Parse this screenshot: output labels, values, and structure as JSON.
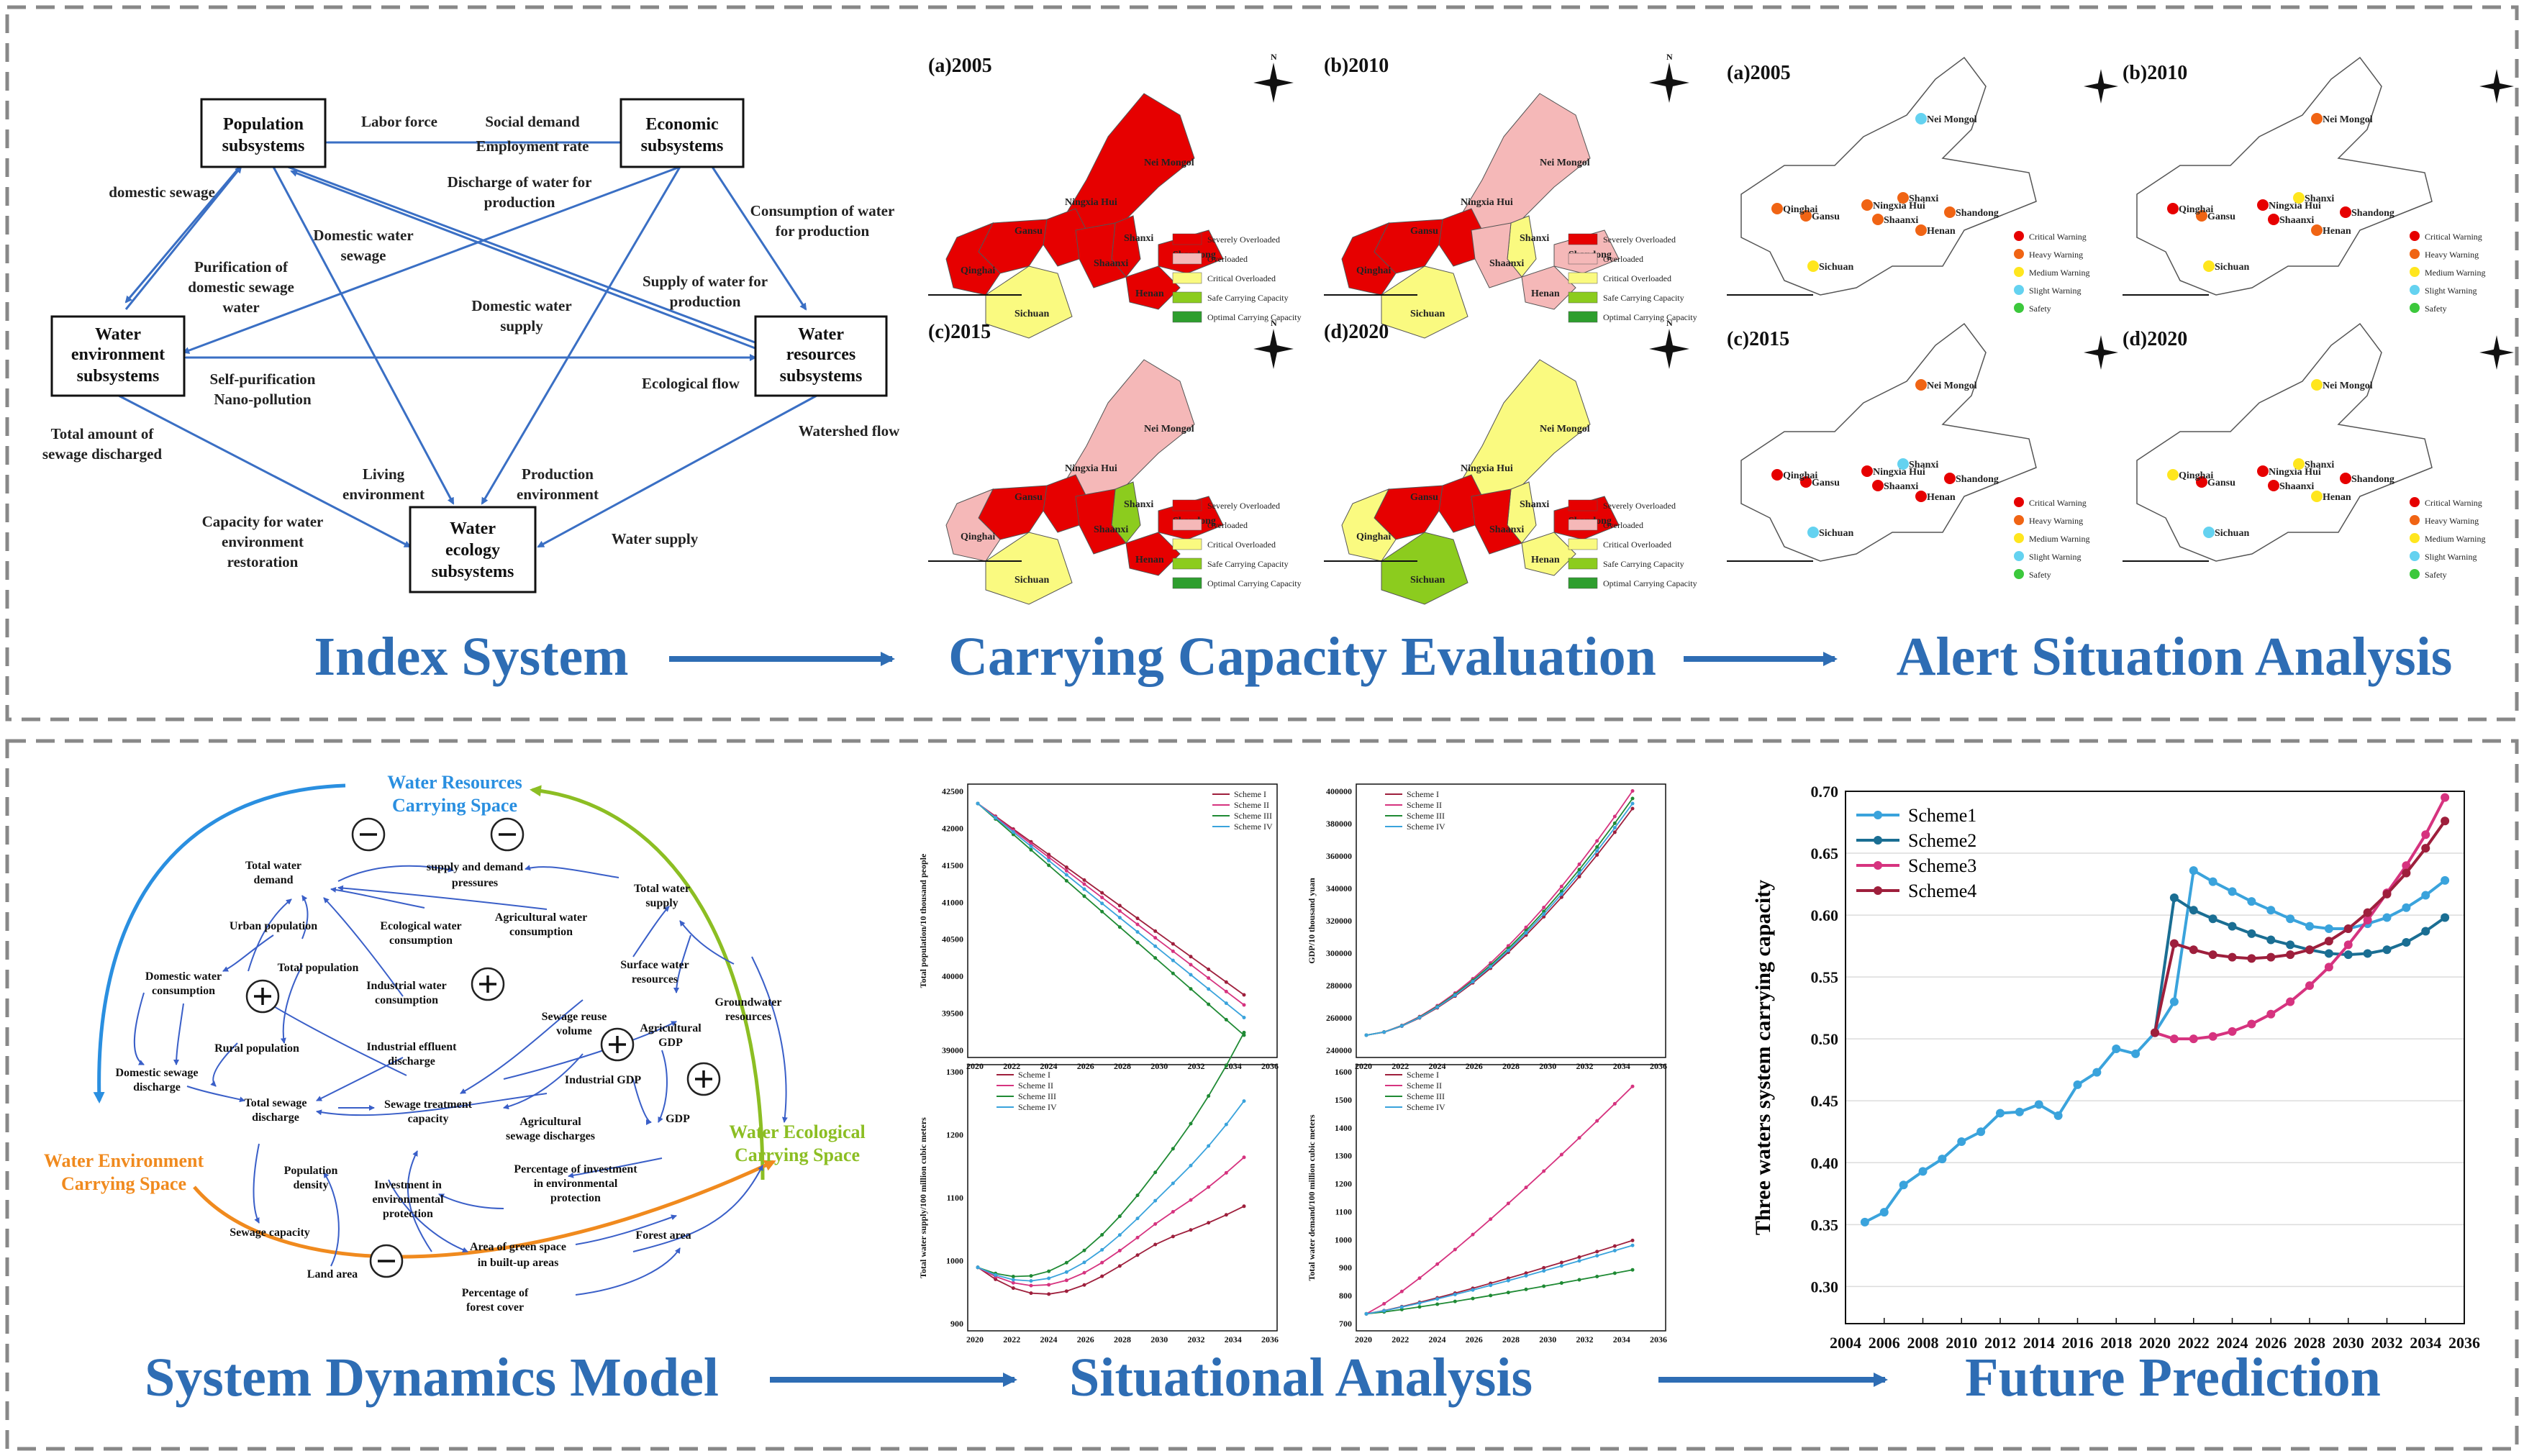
{
  "colors": {
    "accent_blue": "#2e6db4",
    "severely": "#e60000",
    "overloaded": "#f5b8b8",
    "critical": "#fafa80",
    "safe": "#8ccc1e",
    "optimal": "#2e9e2e",
    "critical_warning": "#e60000",
    "heavy_warning": "#f06414",
    "medium_warning": "#ffe61e",
    "slight_warning": "#64d2f0",
    "safety": "#3cc83c"
  },
  "sections": {
    "index_system": "Index System",
    "carrying_capacity": "Carrying Capacity Evaluation",
    "alert_situation": "Alert Situation Analysis",
    "sd_model": "System Dynamics Model",
    "situational": "Situational Analysis",
    "future": "Future Prediction"
  },
  "index_system": {
    "boxes": {
      "population": [
        "Population",
        "subsystems"
      ],
      "economic": [
        "Economic",
        "subsystems"
      ],
      "water_env": [
        "Water",
        "environment",
        "subsystems"
      ],
      "water_res": [
        "Water",
        "resources",
        "subsystems"
      ],
      "water_eco": [
        "Water",
        "ecology",
        "subsystems"
      ]
    },
    "labels": {
      "labor_force": "Labor force",
      "social_demand": "Social demand",
      "employment_rate": "Employment rate",
      "domestic_sewage": "domestic sewage",
      "discharge_water_1": "Discharge of water for",
      "discharge_water_2": "production",
      "consumption_water_1": "Consumption of water",
      "consumption_water_2": "for production",
      "domestic_water_sewage_1": "Domestic water",
      "domestic_water_sewage_2": "sewage",
      "purification_1": "Purification of",
      "purification_2": "domestic sewage",
      "purification_3": "water",
      "domestic_water_supply_1": "Domestic water",
      "domestic_water_supply_2": "supply",
      "supply_water_1": "Supply of water for",
      "supply_water_2": "production",
      "self_purification": "Self-purification",
      "nano_pollution": "Nano-pollution",
      "ecological_flow": "Ecological flow",
      "total_sewage_1": "Total amount of",
      "total_sewage_2": "sewage discharged",
      "watershed_flow": "Watershed flow",
      "living_env_1": "Living",
      "living_env_2": "environment",
      "production_env_1": "Production",
      "production_env_2": "environment",
      "capacity_1": "Capacity for water",
      "capacity_2": "environment",
      "capacity_3": "restoration",
      "water_supply": "Water supply"
    }
  },
  "carrying_maps": {
    "titles": [
      "(a)2005",
      "(b)2010",
      "(c)2015",
      "(d)2020"
    ],
    "legend": [
      "Severely Overloaded",
      "Overloaded",
      "Critical Overloaded",
      "Safe Carrying Capacity",
      "Optimal Carrying Capacity"
    ],
    "place_names": {
      "nei_mongol": "Nei Mongol",
      "ningxia": "Ningxia Hui",
      "gansu": "Gansu",
      "qinghai": "Qinghai",
      "shanxi": "Shanxi",
      "shaanxi": "Shaanxi",
      "henan": "Henan",
      "shandong": "Shandong",
      "sichuan": "Sichuan"
    },
    "north": "N"
  },
  "alert_maps": {
    "titles": [
      "(a)2005",
      "(b)2010",
      "(c)2015",
      "(d)2020"
    ],
    "legend": [
      "Critical Warning",
      "Heavy Warning",
      "Medium Warning",
      "Slight Warning",
      "Safety"
    ]
  },
  "sd_model": {
    "spaces": {
      "resources_1": "Water Resources",
      "resources_2": "Carrying Space",
      "environment_1": "Water Environment",
      "environment_2": "Carrying Space",
      "ecological_1": "Water Ecological",
      "ecological_2": "Carrying Space"
    },
    "nodes": {
      "total_water_demand_1": "Total water",
      "total_water_demand_2": "demand",
      "supply_demand_1": "supply and demand",
      "supply_demand_2": "pressures",
      "total_water_supply_1": "Total water",
      "total_water_supply_2": "supply",
      "urban_population": "Urban population",
      "ecological_consumption_1": "Ecological water",
      "ecological_consumption_2": "consumption",
      "agricultural_consumption_1": "Agricultural water",
      "agricultural_consumption_2": "consumption",
      "total_population": "Total population",
      "domestic_consumption_1": "Domestic water",
      "domestic_consumption_2": "consumption",
      "industrial_consumption_1": "Industrial water",
      "industrial_consumption_2": "consumption",
      "surface_water_1": "Surface water",
      "surface_water_2": "resources",
      "groundwater_1": "Groundwater",
      "groundwater_2": "resources",
      "sewage_reuse_1": "Sewage reuse",
      "sewage_reuse_2": "volume",
      "agricultural_gdp_1": "Agricultural",
      "agricultural_gdp_2": "GDP",
      "rural_population": "Rural population",
      "industrial_effluent_1": "Industrial effluent",
      "industrial_effluent_2": "discharge",
      "industrial_gdp": "Industrial GDP",
      "domestic_sewage_1": "Domestic sewage",
      "domestic_sewage_2": "discharge",
      "total_sewage_1": "Total sewage",
      "total_sewage_2": "discharge",
      "sewage_treatment_1": "Sewage treatment",
      "sewage_treatment_2": "capacity",
      "agricultural_sewage_1": "Agricultural",
      "agricultural_sewage_2": "sewage discharges",
      "gdp": "GDP",
      "population_density_1": "Population",
      "population_density_2": "density",
      "investment_1": "Investment in",
      "investment_2": "environmental",
      "investment_3": "protection",
      "percentage_investment_1": "Percentage of investment",
      "percentage_investment_2": "in environmental",
      "percentage_investment_3": "protection",
      "sewage_capacity": "Sewage capacity",
      "land_area": "Land area",
      "green_space_1": "Area of green space",
      "green_space_2": "in built-up areas",
      "forest_area": "Forest area",
      "forest_cover_1": "Percentage of",
      "forest_cover_2": "forest cover"
    }
  },
  "situational": {
    "legend": [
      "Scheme I",
      "Scheme II",
      "Scheme III",
      "Scheme IV"
    ],
    "x_ticks": [
      "2020",
      "2022",
      "2024",
      "2026",
      "2028",
      "2030",
      "2032",
      "2034",
      "2036"
    ],
    "charts": [
      {
        "ylabel": "Total population/10 thousand people",
        "y_ticks": [
          "42500",
          "42000",
          "41500",
          "41000",
          "40500",
          "40000",
          "39500",
          "39000"
        ]
      },
      {
        "ylabel": "GDP/10 thousand yuan",
        "y_ticks": [
          "400000",
          "380000",
          "360000",
          "340000",
          "320000",
          "300000",
          "280000",
          "260000",
          "240000"
        ]
      },
      {
        "ylabel": "Total water supply/100 million cubic meters",
        "y_ticks": [
          "1300",
          "1200",
          "1100",
          "1000",
          "900"
        ]
      },
      {
        "ylabel": "Total water demand/100 million cubic meters",
        "y_ticks": [
          "1600",
          "1500",
          "1400",
          "1300",
          "1200",
          "1100",
          "1000",
          "900",
          "800",
          "700"
        ]
      }
    ]
  },
  "chart_data": {
    "type": "line",
    "ylabel": "Three waters system carrying capacity",
    "xlabel": "",
    "xlim": [
      2004,
      2036
    ],
    "ylim": [
      0.27,
      0.7
    ],
    "x_ticks": [
      "2004",
      "2006",
      "2008",
      "2010",
      "2012",
      "2014",
      "2016",
      "2018",
      "2020",
      "2022",
      "2024",
      "2026",
      "2028",
      "2030",
      "2032",
      "2034",
      "2036"
    ],
    "y_ticks": [
      "0.70",
      "0.65",
      "0.60",
      "0.55",
      "0.50",
      "0.45",
      "0.40",
      "0.35",
      "0.30"
    ],
    "legend_position": "top-left",
    "series": [
      {
        "name": "Scheme1",
        "color": "#3aa3dc",
        "x": [
          2005,
          2006,
          2007,
          2008,
          2009,
          2010,
          2011,
          2012,
          2013,
          2014,
          2015,
          2016,
          2017,
          2018,
          2019,
          2020,
          2021,
          2022,
          2023,
          2024,
          2025,
          2026,
          2027,
          2028,
          2029,
          2030,
          2031,
          2032,
          2033,
          2034,
          2035
        ],
        "y": [
          0.352,
          0.36,
          0.382,
          0.393,
          0.403,
          0.417,
          0.425,
          0.44,
          0.441,
          0.447,
          0.438,
          0.463,
          0.473,
          0.492,
          0.488,
          0.505,
          0.53,
          0.636,
          0.627,
          0.619,
          0.611,
          0.604,
          0.597,
          0.591,
          0.589,
          0.589,
          0.593,
          0.598,
          0.606,
          0.616,
          0.628
        ]
      },
      {
        "name": "Scheme2",
        "color": "#1a6e93",
        "x": [
          2020,
          2021,
          2022,
          2023,
          2024,
          2025,
          2026,
          2027,
          2028,
          2029,
          2030,
          2031,
          2032,
          2033,
          2034,
          2035
        ],
        "y": [
          0.505,
          0.614,
          0.604,
          0.597,
          0.591,
          0.585,
          0.58,
          0.576,
          0.572,
          0.569,
          0.568,
          0.569,
          0.572,
          0.578,
          0.587,
          0.598
        ]
      },
      {
        "name": "Scheme3",
        "color": "#d6337f",
        "x": [
          2020,
          2021,
          2022,
          2023,
          2024,
          2025,
          2026,
          2027,
          2028,
          2029,
          2030,
          2031,
          2032,
          2033,
          2034,
          2035
        ],
        "y": [
          0.505,
          0.5,
          0.5,
          0.502,
          0.506,
          0.512,
          0.52,
          0.53,
          0.543,
          0.558,
          0.576,
          0.596,
          0.618,
          0.64,
          0.665,
          0.695
        ]
      },
      {
        "name": "Scheme4",
        "color": "#9e1f3c",
        "x": [
          2020,
          2021,
          2022,
          2023,
          2024,
          2025,
          2026,
          2027,
          2028,
          2029,
          2030,
          2031,
          2032,
          2033,
          2034,
          2035
        ],
        "y": [
          0.505,
          0.577,
          0.572,
          0.568,
          0.566,
          0.565,
          0.566,
          0.568,
          0.572,
          0.579,
          0.589,
          0.602,
          0.617,
          0.634,
          0.654,
          0.676
        ]
      }
    ]
  }
}
